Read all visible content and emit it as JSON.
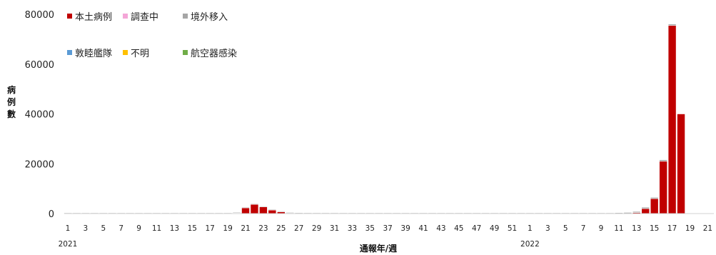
{
  "chart_data": {
    "type": "bar",
    "stacked": true,
    "xlabel": "通報年/週",
    "ylabel": "病例數",
    "ylim": [
      0,
      80000
    ],
    "yticks": [
      0,
      20000,
      40000,
      60000,
      80000
    ],
    "grid": false,
    "legend_position": "top-left",
    "year_labels": [
      {
        "label": "2021",
        "week_index": 0
      },
      {
        "label": "2022",
        "week_index": 52
      }
    ],
    "x_tick_labels": [
      "1",
      "3",
      "5",
      "7",
      "9",
      "11",
      "13",
      "15",
      "17",
      "19",
      "21",
      "23",
      "25",
      "27",
      "29",
      "31",
      "33",
      "35",
      "37",
      "39",
      "41",
      "43",
      "45",
      "47",
      "49",
      "51",
      "1",
      "3",
      "5",
      "7",
      "9",
      "11",
      "13",
      "15",
      "17",
      "19",
      "21"
    ],
    "categories": [
      "2021-1",
      "2021-2",
      "2021-3",
      "2021-4",
      "2021-5",
      "2021-6",
      "2021-7",
      "2021-8",
      "2021-9",
      "2021-10",
      "2021-11",
      "2021-12",
      "2021-13",
      "2021-14",
      "2021-15",
      "2021-16",
      "2021-17",
      "2021-18",
      "2021-19",
      "2021-20",
      "2021-21",
      "2021-22",
      "2021-23",
      "2021-24",
      "2021-25",
      "2021-26",
      "2021-27",
      "2021-28",
      "2021-29",
      "2021-30",
      "2021-31",
      "2021-32",
      "2021-33",
      "2021-34",
      "2021-35",
      "2021-36",
      "2021-37",
      "2021-38",
      "2021-39",
      "2021-40",
      "2021-41",
      "2021-42",
      "2021-43",
      "2021-44",
      "2021-45",
      "2021-46",
      "2021-47",
      "2021-48",
      "2021-49",
      "2021-50",
      "2021-51",
      "2021-52",
      "2022-1",
      "2022-2",
      "2022-3",
      "2022-4",
      "2022-5",
      "2022-6",
      "2022-7",
      "2022-8",
      "2022-9",
      "2022-10",
      "2022-11",
      "2022-12",
      "2022-13",
      "2022-14",
      "2022-15",
      "2022-16",
      "2022-17",
      "2022-18",
      "2022-19",
      "2022-20",
      "2022-21",
      "2022-22"
    ],
    "series": [
      {
        "name": "本土病例",
        "color": "#c00000",
        "values": [
          0,
          0,
          0,
          0,
          0,
          0,
          0,
          0,
          0,
          0,
          0,
          0,
          0,
          0,
          0,
          0,
          0,
          0,
          0,
          200,
          2300,
          3700,
          2700,
          1400,
          700,
          150,
          30,
          10,
          5,
          2,
          2,
          1,
          1,
          1,
          1,
          0,
          0,
          0,
          0,
          0,
          0,
          0,
          0,
          0,
          0,
          0,
          0,
          0,
          0,
          0,
          0,
          0,
          0,
          0,
          0,
          0,
          0,
          0,
          0,
          0,
          0,
          0,
          20,
          70,
          400,
          2000,
          6000,
          21000,
          75500,
          40000,
          0,
          0,
          0,
          0
        ]
      },
      {
        "name": "調查中",
        "color": "#f4a6d7",
        "values": [
          0,
          0,
          0,
          0,
          0,
          0,
          0,
          0,
          0,
          0,
          0,
          0,
          0,
          0,
          0,
          0,
          0,
          0,
          0,
          0,
          0,
          0,
          0,
          0,
          0,
          0,
          0,
          0,
          0,
          0,
          0,
          0,
          0,
          0,
          0,
          0,
          0,
          0,
          0,
          0,
          0,
          0,
          0,
          0,
          0,
          0,
          0,
          0,
          0,
          0,
          0,
          0,
          0,
          0,
          0,
          0,
          0,
          0,
          0,
          0,
          0,
          0,
          0,
          0,
          0,
          0,
          0,
          0,
          0,
          0,
          0,
          0,
          0,
          0
        ]
      },
      {
        "name": "境外移入",
        "color": "#a6a6a6",
        "values": [
          20,
          20,
          15,
          15,
          10,
          15,
          15,
          15,
          20,
          25,
          25,
          20,
          15,
          25,
          30,
          25,
          25,
          20,
          30,
          30,
          25,
          20,
          15,
          10,
          15,
          20,
          20,
          25,
          30,
          35,
          30,
          30,
          35,
          40,
          40,
          45,
          40,
          45,
          45,
          50,
          50,
          55,
          50,
          60,
          65,
          70,
          70,
          80,
          100,
          110,
          120,
          130,
          150,
          200,
          220,
          240,
          200,
          180,
          200,
          180,
          250,
          280,
          330,
          380,
          450,
          550,
          500,
          600,
          600,
          0,
          0,
          0,
          0,
          0
        ]
      },
      {
        "name": "敦睦艦隊",
        "color": "#5b9bd5",
        "values": [
          0,
          0,
          0,
          0,
          0,
          0,
          0,
          0,
          0,
          0,
          0,
          0,
          0,
          0,
          0,
          0,
          0,
          0,
          0,
          0,
          0,
          0,
          0,
          0,
          0,
          0,
          0,
          0,
          0,
          0,
          0,
          0,
          0,
          0,
          0,
          0,
          0,
          0,
          0,
          0,
          0,
          0,
          0,
          0,
          0,
          0,
          0,
          0,
          0,
          0,
          0,
          0,
          0,
          0,
          0,
          0,
          0,
          0,
          0,
          0,
          0,
          0,
          0,
          0,
          0,
          0,
          0,
          0,
          0,
          0,
          0,
          0,
          0,
          0
        ]
      },
      {
        "name": "不明",
        "color": "#ffc000",
        "values": [
          0,
          0,
          0,
          0,
          0,
          0,
          0,
          0,
          0,
          0,
          0,
          0,
          0,
          0,
          0,
          0,
          0,
          0,
          0,
          0,
          0,
          0,
          0,
          0,
          0,
          0,
          0,
          0,
          0,
          0,
          0,
          0,
          0,
          0,
          0,
          0,
          0,
          0,
          0,
          0,
          0,
          0,
          0,
          0,
          0,
          0,
          0,
          0,
          0,
          0,
          0,
          0,
          0,
          0,
          0,
          0,
          0,
          0,
          0,
          0,
          0,
          0,
          0,
          0,
          0,
          0,
          0,
          0,
          0,
          0,
          0,
          0,
          0,
          0
        ]
      },
      {
        "name": "航空器感染",
        "color": "#70ad47",
        "values": [
          0,
          0,
          0,
          0,
          0,
          0,
          0,
          0,
          0,
          0,
          0,
          0,
          0,
          0,
          0,
          0,
          0,
          0,
          0,
          0,
          0,
          0,
          0,
          0,
          0,
          0,
          0,
          0,
          0,
          0,
          0,
          0,
          0,
          0,
          0,
          0,
          0,
          0,
          0,
          0,
          0,
          0,
          0,
          0,
          0,
          0,
          0,
          0,
          0,
          0,
          0,
          0,
          0,
          0,
          0,
          0,
          0,
          0,
          0,
          0,
          0,
          0,
          0,
          0,
          0,
          0,
          0,
          0,
          0,
          0,
          0,
          0,
          0,
          0
        ]
      }
    ]
  }
}
